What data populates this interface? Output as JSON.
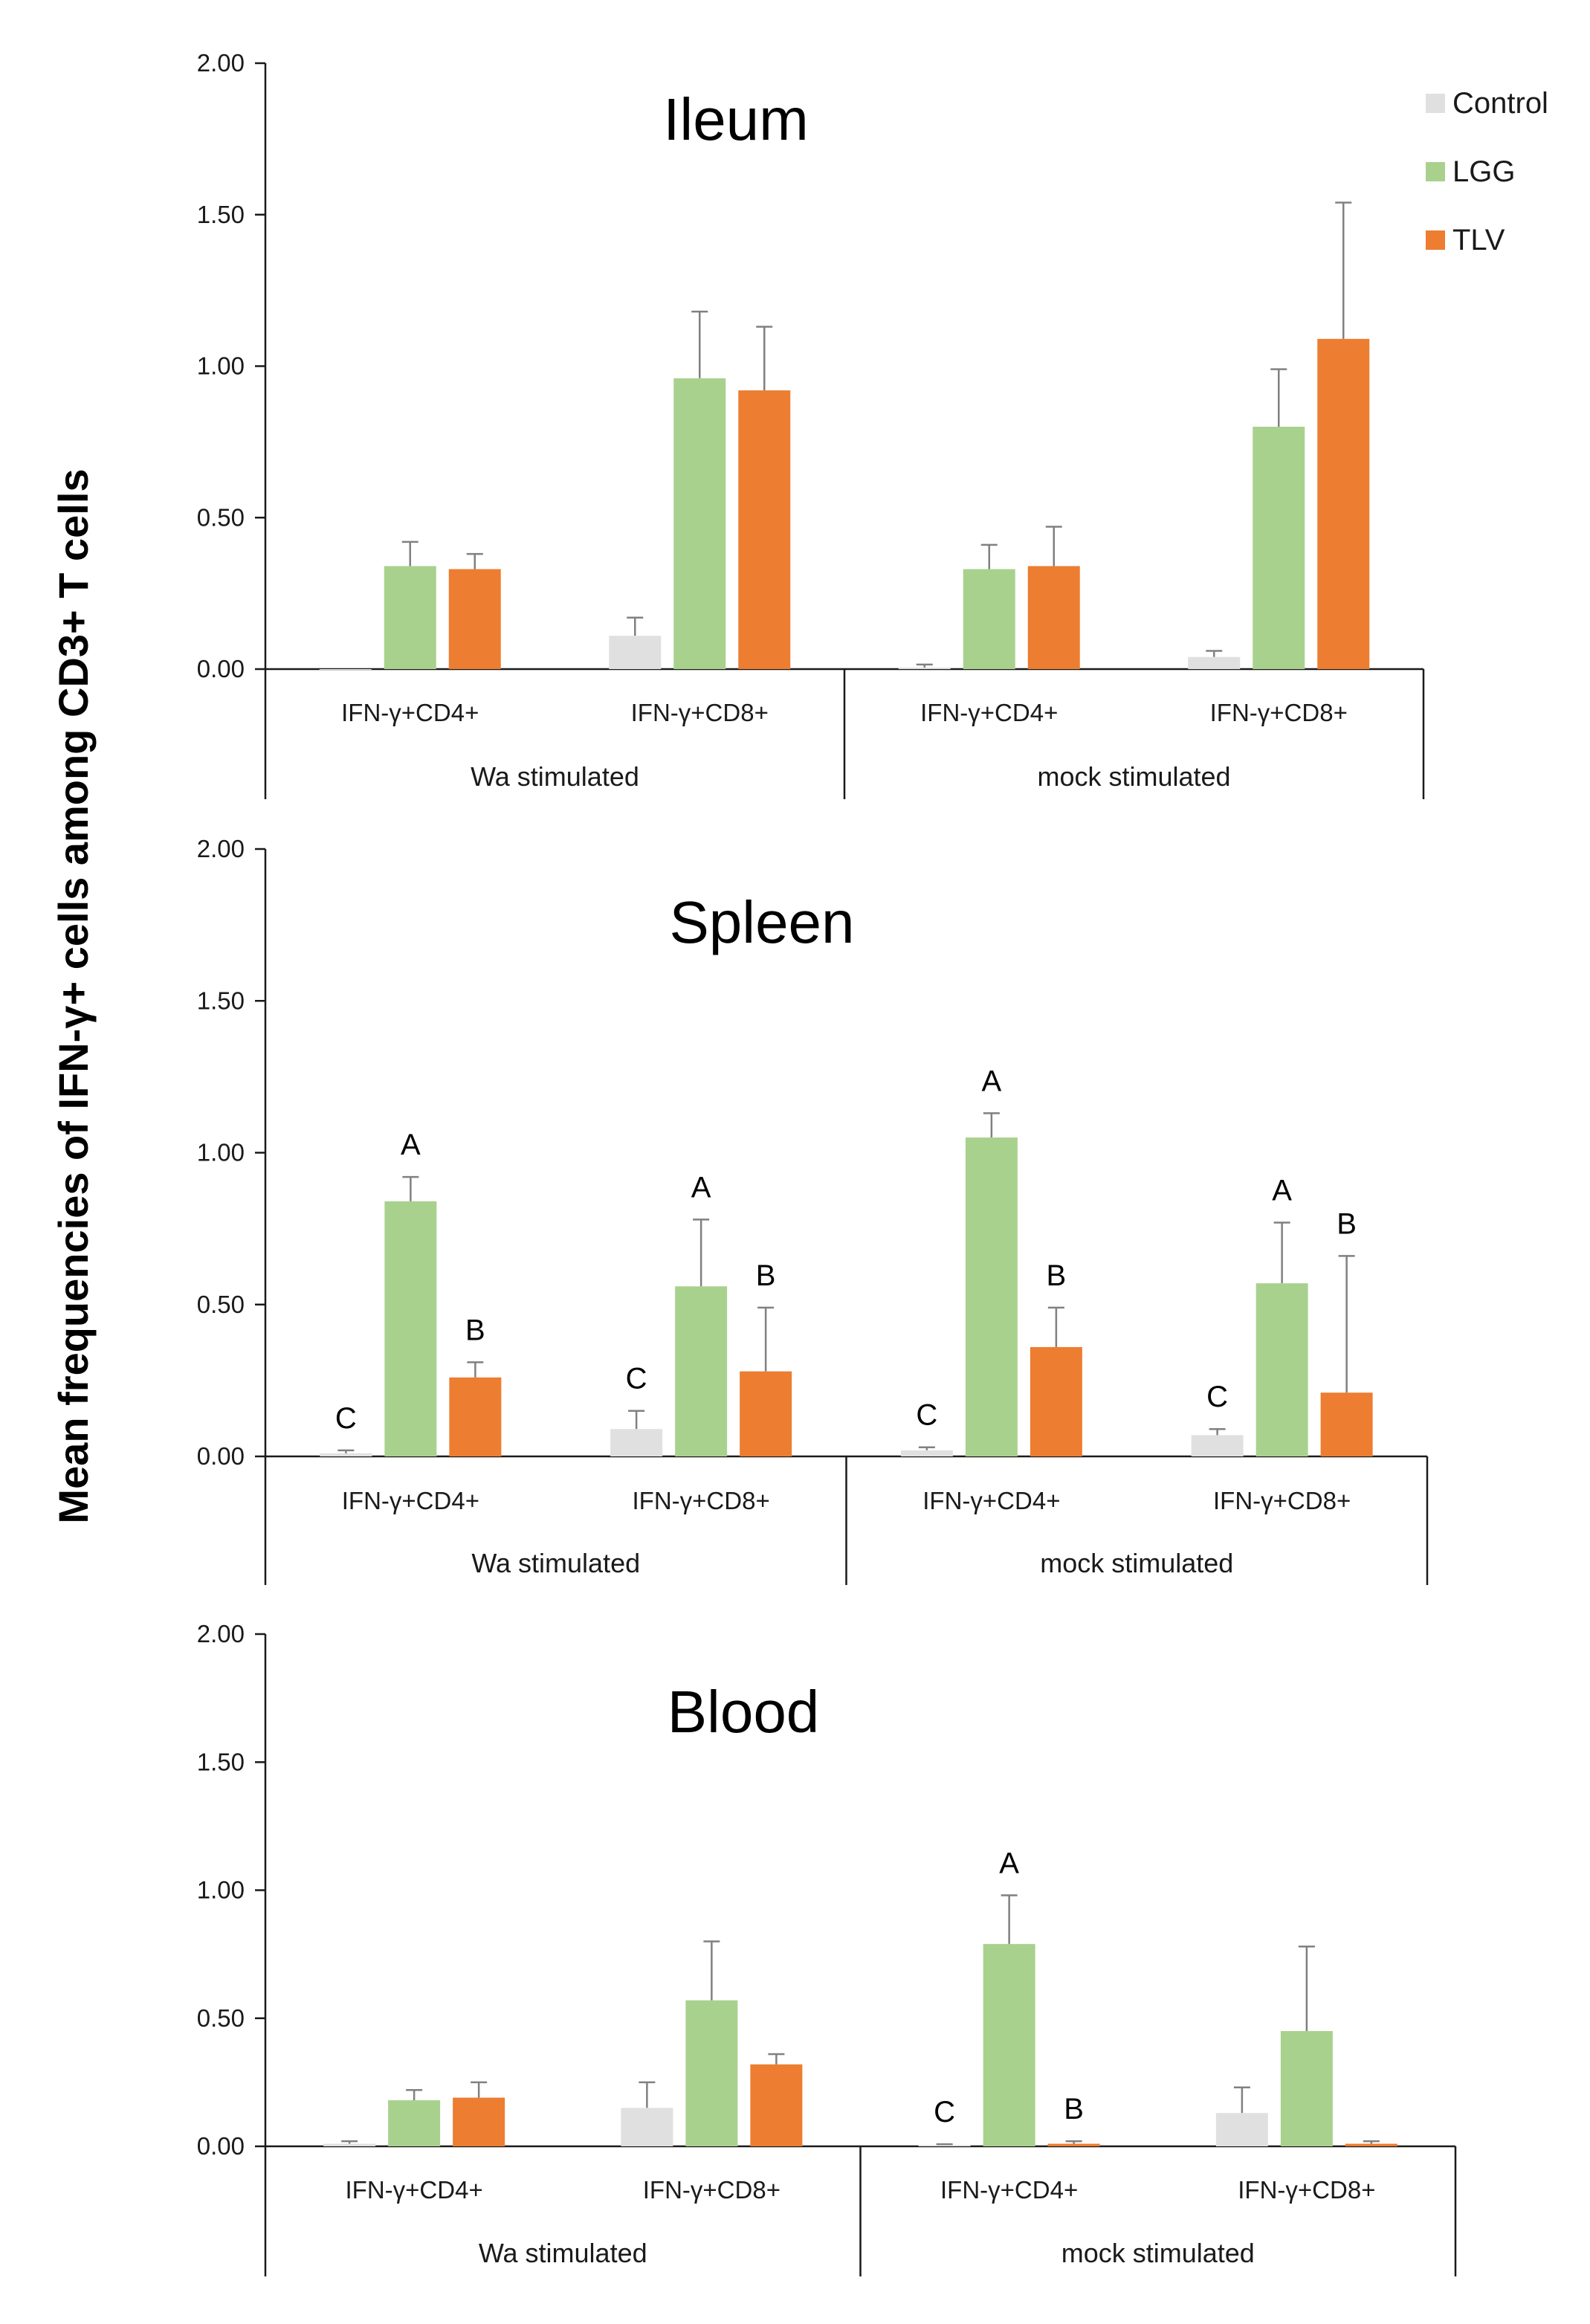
{
  "chart_data": {
    "type": "bar",
    "ylabel": "Mean frequencies of IFN-γ+ cells among CD3+ T cells",
    "ylim": [
      0,
      2
    ],
    "yticks": [
      "0.00",
      "0.50",
      "1.00",
      "1.50",
      "2.00"
    ],
    "ytick_values": [
      0,
      0.5,
      1.0,
      1.5,
      2.0
    ],
    "legend": [
      {
        "name": "Control",
        "color": "#e0e0e0"
      },
      {
        "name": "LGG",
        "color": "#a9d18e"
      },
      {
        "name": "TLV",
        "color": "#ed7d31"
      }
    ],
    "group_labels": [
      "Wa stimulated",
      "mock stimulated"
    ],
    "categories": [
      "IFN-γ+CD4+",
      "IFN-γ+CD8+",
      "IFN-γ+CD4+",
      "IFN-γ+CD8+"
    ],
    "panels": [
      {
        "title": "Ileum",
        "series": [
          {
            "name": "Control",
            "values": [
              0.0,
              0.11,
              0.005,
              0.04
            ],
            "errors": [
              0.0,
              0.06,
              0.01,
              0.02
            ]
          },
          {
            "name": "LGG",
            "values": [
              0.34,
              0.96,
              0.33,
              0.8
            ],
            "errors": [
              0.08,
              0.22,
              0.08,
              0.19
            ]
          },
          {
            "name": "TLV",
            "values": [
              0.33,
              0.92,
              0.34,
              1.09
            ],
            "errors": [
              0.05,
              0.21,
              0.13,
              0.45
            ]
          }
        ],
        "annotations": [
          [
            "",
            "",
            ""
          ],
          [
            "",
            "",
            ""
          ],
          [
            "",
            "",
            ""
          ],
          [
            "",
            "",
            ""
          ]
        ]
      },
      {
        "title": "Spleen",
        "series": [
          {
            "name": "Control",
            "values": [
              0.01,
              0.09,
              0.02,
              0.07
            ],
            "errors": [
              0.01,
              0.06,
              0.01,
              0.02
            ]
          },
          {
            "name": "LGG",
            "values": [
              0.84,
              0.56,
              1.05,
              0.57
            ],
            "errors": [
              0.08,
              0.22,
              0.08,
              0.2
            ]
          },
          {
            "name": "TLV",
            "values": [
              0.26,
              0.28,
              0.36,
              0.21
            ],
            "errors": [
              0.05,
              0.21,
              0.13,
              0.45
            ]
          }
        ],
        "annotations": [
          [
            "C",
            "A",
            "B"
          ],
          [
            "C",
            "A",
            "B"
          ],
          [
            "C",
            "A",
            "B"
          ],
          [
            "C",
            "A",
            "B"
          ]
        ]
      },
      {
        "title": "Blood",
        "series": [
          {
            "name": "Control",
            "values": [
              0.01,
              0.15,
              0.005,
              0.13
            ],
            "errors": [
              0.01,
              0.1,
              0.003,
              0.1
            ]
          },
          {
            "name": "LGG",
            "values": [
              0.18,
              0.57,
              0.79,
              0.45
            ],
            "errors": [
              0.04,
              0.23,
              0.19,
              0.33
            ]
          },
          {
            "name": "TLV",
            "values": [
              0.19,
              0.32,
              0.01,
              0.01
            ],
            "errors": [
              0.06,
              0.04,
              0.01,
              0.01
            ]
          }
        ],
        "annotations": [
          [
            "",
            "",
            ""
          ],
          [
            "",
            "",
            ""
          ],
          [
            "C",
            "A",
            "B"
          ],
          [
            "",
            "",
            ""
          ]
        ]
      }
    ]
  }
}
